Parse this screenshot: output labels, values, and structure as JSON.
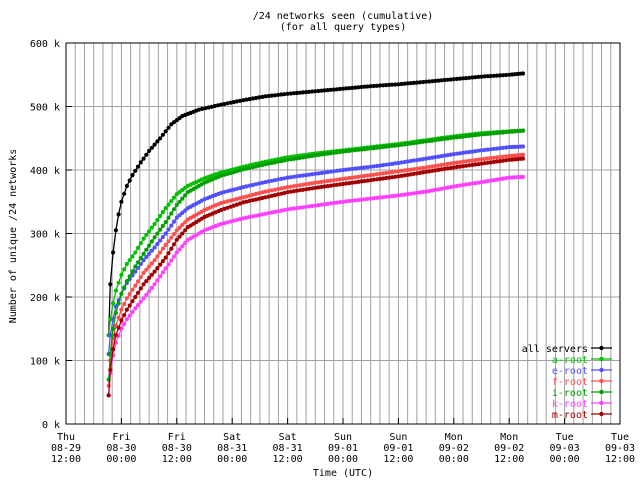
{
  "chart_data": {
    "type": "line",
    "title": "/24 networks seen (cumulative)",
    "subtitle": "(for all query types)",
    "xlabel": "Time (UTC)",
    "ylabel": "Number of unique /24 networks",
    "ylim": [
      0,
      600000
    ],
    "xlim": [
      0,
      10
    ],
    "grid": true,
    "legend_position": "bottom-right",
    "x_ticks": [
      {
        "day": "Thu",
        "date": "08-29",
        "time": "12:00"
      },
      {
        "day": "Fri",
        "date": "08-30",
        "time": "00:00"
      },
      {
        "day": "Fri",
        "date": "08-30",
        "time": "12:00"
      },
      {
        "day": "Sat",
        "date": "08-31",
        "time": "00:00"
      },
      {
        "day": "Sat",
        "date": "08-31",
        "time": "12:00"
      },
      {
        "day": "Sun",
        "date": "09-01",
        "time": "00:00"
      },
      {
        "day": "Sun",
        "date": "09-01",
        "time": "12:00"
      },
      {
        "day": "Mon",
        "date": "09-02",
        "time": "00:00"
      },
      {
        "day": "Mon",
        "date": "09-02",
        "time": "12:00"
      },
      {
        "day": "Tue",
        "date": "09-03",
        "time": "00:00"
      },
      {
        "day": "Tue",
        "date": "09-03",
        "time": "12:00"
      }
    ],
    "y_ticks": [
      "0 k",
      "100 k",
      "200 k",
      "300 k",
      "400 k",
      "500 k",
      "600 k"
    ],
    "series": [
      {
        "name": "all servers",
        "color": "#000000",
        "points": [
          [
            0.77,
            140000
          ],
          [
            0.8,
            220000
          ],
          [
            0.85,
            270000
          ],
          [
            0.9,
            305000
          ],
          [
            0.95,
            330000
          ],
          [
            1.0,
            350000
          ],
          [
            1.1,
            375000
          ],
          [
            1.2,
            392000
          ],
          [
            1.35,
            412000
          ],
          [
            1.5,
            430000
          ],
          [
            1.7,
            450000
          ],
          [
            1.9,
            472000
          ],
          [
            2.1,
            485000
          ],
          [
            2.4,
            495000
          ],
          [
            2.8,
            503000
          ],
          [
            3.2,
            510000
          ],
          [
            3.6,
            516000
          ],
          [
            4.0,
            520000
          ],
          [
            4.5,
            524000
          ],
          [
            5.0,
            528000
          ],
          [
            5.5,
            532000
          ],
          [
            6.0,
            535000
          ],
          [
            6.5,
            539000
          ],
          [
            7.0,
            543000
          ],
          [
            7.5,
            547000
          ],
          [
            8.0,
            550000
          ],
          [
            8.25,
            552000
          ]
        ]
      },
      {
        "name": "a-root",
        "color": "#00c000",
        "points": [
          [
            0.77,
            140000
          ],
          [
            0.8,
            165000
          ],
          [
            0.85,
            190000
          ],
          [
            0.9,
            210000
          ],
          [
            1.0,
            235000
          ],
          [
            1.1,
            252000
          ],
          [
            1.25,
            270000
          ],
          [
            1.4,
            292000
          ],
          [
            1.6,
            315000
          ],
          [
            1.8,
            340000
          ],
          [
            2.0,
            362000
          ],
          [
            2.2,
            375000
          ],
          [
            2.5,
            387000
          ],
          [
            2.8,
            396000
          ],
          [
            3.2,
            405000
          ],
          [
            3.6,
            413000
          ],
          [
            4.0,
            420000
          ],
          [
            4.5,
            426000
          ],
          [
            5.0,
            431000
          ],
          [
            5.5,
            436000
          ],
          [
            6.0,
            441000
          ],
          [
            6.5,
            447000
          ],
          [
            7.0,
            453000
          ],
          [
            7.5,
            458000
          ],
          [
            8.0,
            461000
          ],
          [
            8.25,
            462000
          ]
        ]
      },
      {
        "name": "e-root",
        "color": "#5050ff",
        "points": [
          [
            0.77,
            110000
          ],
          [
            0.8,
            140000
          ],
          [
            0.85,
            165000
          ],
          [
            0.9,
            185000
          ],
          [
            1.0,
            205000
          ],
          [
            1.1,
            222000
          ],
          [
            1.25,
            240000
          ],
          [
            1.4,
            258000
          ],
          [
            1.6,
            278000
          ],
          [
            1.8,
            300000
          ],
          [
            2.0,
            325000
          ],
          [
            2.2,
            340000
          ],
          [
            2.5,
            354000
          ],
          [
            2.8,
            364000
          ],
          [
            3.2,
            373000
          ],
          [
            3.6,
            381000
          ],
          [
            4.0,
            388000
          ],
          [
            4.5,
            394000
          ],
          [
            5.0,
            400000
          ],
          [
            5.5,
            405000
          ],
          [
            6.0,
            411000
          ],
          [
            6.5,
            418000
          ],
          [
            7.0,
            425000
          ],
          [
            7.5,
            431000
          ],
          [
            8.0,
            436000
          ],
          [
            8.25,
            437000
          ]
        ]
      },
      {
        "name": "f-root",
        "color": "#ff5050",
        "points": [
          [
            0.77,
            60000
          ],
          [
            0.8,
            100000
          ],
          [
            0.85,
            135000
          ],
          [
            0.9,
            155000
          ],
          [
            1.0,
            180000
          ],
          [
            1.1,
            198000
          ],
          [
            1.25,
            218000
          ],
          [
            1.4,
            238000
          ],
          [
            1.6,
            258000
          ],
          [
            1.8,
            282000
          ],
          [
            2.0,
            305000
          ],
          [
            2.2,
            322000
          ],
          [
            2.5,
            337000
          ],
          [
            2.8,
            348000
          ],
          [
            3.2,
            357000
          ],
          [
            3.6,
            366000
          ],
          [
            4.0,
            373000
          ],
          [
            4.5,
            380000
          ],
          [
            5.0,
            386000
          ],
          [
            5.5,
            392000
          ],
          [
            6.0,
            398000
          ],
          [
            6.5,
            404000
          ],
          [
            7.0,
            411000
          ],
          [
            7.5,
            417000
          ],
          [
            8.0,
            422000
          ],
          [
            8.25,
            424000
          ]
        ]
      },
      {
        "name": "i-root",
        "color": "#00a000",
        "points": [
          [
            0.77,
            70000
          ],
          [
            0.8,
            110000
          ],
          [
            0.85,
            150000
          ],
          [
            0.9,
            175000
          ],
          [
            1.0,
            205000
          ],
          [
            1.1,
            225000
          ],
          [
            1.25,
            248000
          ],
          [
            1.4,
            268000
          ],
          [
            1.6,
            294000
          ],
          [
            1.8,
            318000
          ],
          [
            2.0,
            345000
          ],
          [
            2.2,
            365000
          ],
          [
            2.5,
            380000
          ],
          [
            2.8,
            391000
          ],
          [
            3.2,
            401000
          ],
          [
            3.6,
            409000
          ],
          [
            4.0,
            416000
          ],
          [
            4.5,
            423000
          ],
          [
            5.0,
            429000
          ],
          [
            5.5,
            434000
          ],
          [
            6.0,
            439000
          ],
          [
            6.5,
            445000
          ],
          [
            7.0,
            451000
          ],
          [
            7.5,
            456000
          ],
          [
            8.0,
            460000
          ],
          [
            8.25,
            462000
          ]
        ]
      },
      {
        "name": "k-root",
        "color": "#ff40ff",
        "points": [
          [
            0.77,
            45000
          ],
          [
            0.8,
            80000
          ],
          [
            0.85,
            108000
          ],
          [
            0.9,
            128000
          ],
          [
            1.0,
            150000
          ],
          [
            1.1,
            165000
          ],
          [
            1.25,
            182000
          ],
          [
            1.4,
            198000
          ],
          [
            1.6,
            220000
          ],
          [
            1.8,
            245000
          ],
          [
            2.0,
            270000
          ],
          [
            2.2,
            290000
          ],
          [
            2.5,
            305000
          ],
          [
            2.8,
            315000
          ],
          [
            3.2,
            324000
          ],
          [
            3.6,
            331000
          ],
          [
            4.0,
            338000
          ],
          [
            4.5,
            344000
          ],
          [
            5.0,
            350000
          ],
          [
            5.5,
            355000
          ],
          [
            6.0,
            360000
          ],
          [
            6.5,
            366000
          ],
          [
            7.0,
            374000
          ],
          [
            7.5,
            381000
          ],
          [
            8.0,
            388000
          ],
          [
            8.25,
            389000
          ]
        ]
      },
      {
        "name": "m-root",
        "color": "#a00000",
        "points": [
          [
            0.77,
            45000
          ],
          [
            0.8,
            85000
          ],
          [
            0.85,
            118000
          ],
          [
            0.9,
            140000
          ],
          [
            1.0,
            163000
          ],
          [
            1.1,
            180000
          ],
          [
            1.25,
            200000
          ],
          [
            1.4,
            220000
          ],
          [
            1.6,
            240000
          ],
          [
            1.8,
            262000
          ],
          [
            2.0,
            290000
          ],
          [
            2.2,
            310000
          ],
          [
            2.5,
            326000
          ],
          [
            2.8,
            337000
          ],
          [
            3.2,
            349000
          ],
          [
            3.6,
            357000
          ],
          [
            4.0,
            365000
          ],
          [
            4.5,
            372000
          ],
          [
            5.0,
            378000
          ],
          [
            5.5,
            384000
          ],
          [
            6.0,
            390000
          ],
          [
            6.5,
            397000
          ],
          [
            7.0,
            404000
          ],
          [
            7.5,
            410000
          ],
          [
            8.0,
            416000
          ],
          [
            8.25,
            418000
          ]
        ]
      }
    ]
  }
}
